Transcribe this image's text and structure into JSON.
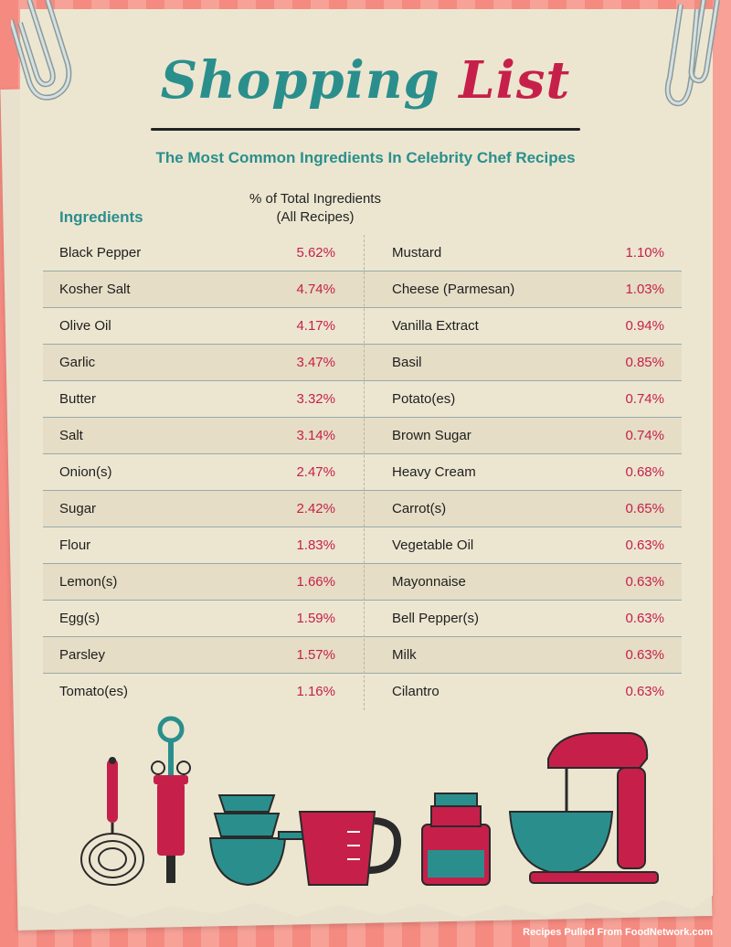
{
  "title": {
    "word1": "Shopping",
    "word2": "List"
  },
  "subtitle": "The Most Common Ingredients In Celebrity Chef Recipes",
  "headers": {
    "ingredients": "Ingredients",
    "percent_line1": "% of Total Ingredients",
    "percent_line2": "(All Recipes)"
  },
  "rows": [
    {
      "left_name": "Black Pepper",
      "left_value": "5.62%",
      "right_name": "Mustard",
      "right_value": "1.10%"
    },
    {
      "left_name": "Kosher Salt",
      "left_value": "4.74%",
      "right_name": "Cheese (Parmesan)",
      "right_value": "1.03%"
    },
    {
      "left_name": "Olive Oil",
      "left_value": "4.17%",
      "right_name": "Vanilla Extract",
      "right_value": "0.94%"
    },
    {
      "left_name": "Garlic",
      "left_value": "3.47%",
      "right_name": "Basil",
      "right_value": "0.85%"
    },
    {
      "left_name": "Butter",
      "left_value": "3.32%",
      "right_name": "Potato(es)",
      "right_value": "0.74%"
    },
    {
      "left_name": "Salt",
      "left_value": "3.14%",
      "right_name": "Brown Sugar",
      "right_value": "0.74%"
    },
    {
      "left_name": "Onion(s)",
      "left_value": "2.47%",
      "right_name": "Heavy Cream",
      "right_value": "0.68%"
    },
    {
      "left_name": "Sugar",
      "left_value": "2.42%",
      "right_name": "Carrot(s)",
      "right_value": "0.65%"
    },
    {
      "left_name": "Flour",
      "left_value": "1.83%",
      "right_name": "Vegetable Oil",
      "right_value": "0.63%"
    },
    {
      "left_name": "Lemon(s)",
      "left_value": "1.66%",
      "right_name": "Mayonnaise",
      "right_value": "0.63%"
    },
    {
      "left_name": "Egg(s)",
      "left_value": "1.59%",
      "right_name": "Bell Pepper(s)",
      "right_value": "0.63%"
    },
    {
      "left_name": "Parsley",
      "left_value": "1.57%",
      "right_name": "Milk",
      "right_value": "0.63%"
    },
    {
      "left_name": "Tomato(es)",
      "left_value": "1.16%",
      "right_name": "Cilantro",
      "right_value": "0.63%"
    }
  ],
  "credit": "Recipes Pulled From FoodNetwork.com",
  "colors": {
    "teal": "#2a8f8c",
    "crimson": "#c6204a",
    "paper": "#ece6d1",
    "background_stripe": "#f48a80"
  },
  "icons": [
    "paperclip-icon",
    "whisk-icon",
    "baster-icon",
    "measuring-cups-icon",
    "measuring-jug-icon",
    "jar-icon",
    "stand-mixer-icon"
  ]
}
